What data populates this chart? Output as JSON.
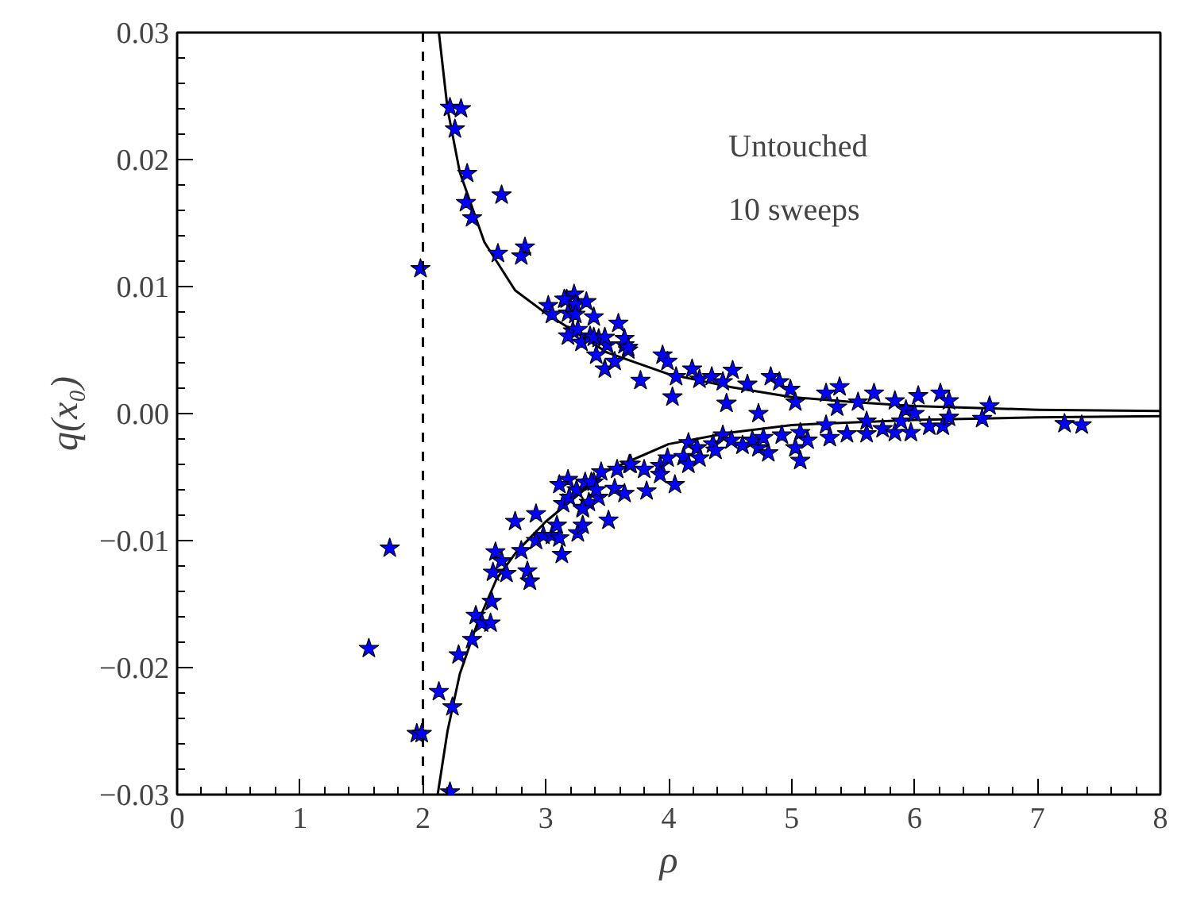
{
  "chart_data": {
    "type": "scatter",
    "xlabel": "ρ",
    "ylabel": "q(x₀)",
    "annotations": [
      "Untouched",
      "10 sweeps"
    ],
    "xlim": [
      0,
      8
    ],
    "ylim": [
      -0.03,
      0.03
    ],
    "xticks": [
      0,
      1,
      2,
      3,
      4,
      5,
      6,
      7,
      8
    ],
    "yticks": [
      {
        "value": -0.03,
        "label": "−0.03"
      },
      {
        "value": -0.02,
        "label": "−0.02"
      },
      {
        "value": -0.01,
        "label": "−0.01"
      },
      {
        "value": 0,
        "label": "0.00"
      },
      {
        "value": 0.01,
        "label": "0.01"
      },
      {
        "value": 0.02,
        "label": "0.02"
      },
      {
        "value": 0.03,
        "label": "0.03"
      }
    ],
    "grid": false,
    "ref_lines": [
      {
        "axis": "x",
        "value": 2,
        "color": "#000000",
        "line_style": "dashed"
      }
    ],
    "series": [
      {
        "type": "line",
        "color": "#000000",
        "marker": "none",
        "line_style": "solid",
        "x": [
          2.13,
          2.2,
          2.3,
          2.5,
          2.75,
          3.0,
          3.5,
          4,
          4.5,
          5,
          5.5,
          6,
          7,
          8
        ],
        "values": [
          0.03,
          0.024,
          0.019,
          0.0135,
          0.0097,
          0.0079,
          0.0048,
          0.0031,
          0.0021,
          0.0013,
          0.0009,
          0.0006,
          0.0003,
          0.0002
        ]
      },
      {
        "type": "line",
        "color": "#000000",
        "marker": "none",
        "line_style": "solid",
        "x": [
          2.12,
          2.2,
          2.3,
          2.44,
          2.6,
          2.76,
          3.0,
          3.5,
          4,
          4.5,
          5,
          6,
          7,
          8
        ],
        "values": [
          -0.03,
          -0.025,
          -0.0205,
          -0.0166,
          -0.013,
          -0.0109,
          -0.0085,
          -0.0045,
          -0.0024,
          -0.0015,
          -0.0009,
          -0.0005,
          -0.0003,
          -0.0002
        ]
      },
      {
        "color": "#0000ff",
        "marker": "star",
        "x": [
          2.22,
          2.31,
          2.26,
          2.36,
          2.35,
          2.64,
          2.4,
          2.61,
          2.83,
          2.8,
          1.98,
          3.02,
          3.05,
          3.17,
          3.23,
          3.24,
          3.33,
          3.18,
          3.24,
          3.39,
          3.59,
          3.22,
          3.18,
          3.26,
          3.29,
          3.36,
          3.43,
          3.5,
          3.41,
          3.48,
          3.56,
          3.64,
          3.67,
          3.15,
          3.39,
          3.48,
          3.64,
          3.67,
          3.95,
          3.99,
          3.77,
          4.03,
          4.06,
          4.19,
          4.25,
          4.35,
          4.44,
          4.47,
          4.52,
          4.64,
          4.73,
          4.83,
          4.9,
          4.99,
          5.03,
          5.28,
          5.39,
          5.37,
          5.54,
          5.67,
          5.84,
          5.93,
          6.03,
          6.21,
          6.28,
          6.61,
          7.22,
          7.36,
          1.73,
          1.56,
          1.95,
          1.99,
          2.22,
          2.13,
          2.24,
          2.29,
          2.4,
          2.43,
          2.48,
          2.55,
          2.56,
          2.57,
          2.59,
          2.64,
          2.68,
          2.75,
          2.8,
          2.85,
          2.87,
          2.92,
          2.92,
          2.98,
          3.05,
          3.11,
          3.13,
          3.09,
          3.14,
          3.18,
          3.11,
          3.19,
          3.26,
          3.3,
          3.3,
          3.35,
          3.25,
          3.32,
          3.39,
          3.43,
          3.45,
          3.51,
          3.56,
          3.58,
          3.64,
          3.68,
          3.3,
          3.37,
          3.41,
          3.82,
          3.69,
          3.8,
          3.93,
          3.93,
          3.99,
          4.05,
          4.12,
          4.16,
          4.16,
          4.23,
          4.25,
          4.36,
          4.38,
          4.44,
          4.51,
          4.6,
          4.68,
          4.73,
          4.81,
          4.77,
          4.92,
          5.03,
          5.07,
          5.07,
          5.13,
          5.28,
          5.31,
          5.45,
          5.61,
          5.61,
          5.74,
          5.84,
          5.97,
          5.89,
          6.0,
          6.12,
          6.23,
          6.28,
          6.55
        ],
        "values": [
          0.0241,
          0.024,
          0.0224,
          0.0189,
          0.0166,
          0.0172,
          0.0154,
          0.0126,
          0.0131,
          0.0124,
          0.0114,
          0.0085,
          0.0078,
          0.009,
          0.0094,
          0.0086,
          0.0088,
          0.0079,
          0.0078,
          0.0076,
          0.0071,
          0.0065,
          0.0061,
          0.0066,
          0.0056,
          0.0061,
          0.0059,
          0.0054,
          0.0046,
          0.0035,
          0.0041,
          0.0054,
          0.005,
          0.009,
          0.006,
          0.006,
          0.0059,
          0.0052,
          0.0046,
          0.0041,
          0.0026,
          0.0013,
          0.0029,
          0.0035,
          0.0027,
          0.0029,
          0.0025,
          0.0008,
          0.0034,
          0.0023,
          0.0,
          0.0029,
          0.0025,
          0.0019,
          0.0009,
          0.0016,
          0.0021,
          0.0005,
          0.0009,
          0.0016,
          0.001,
          0.0003,
          0.0014,
          0.0016,
          0.001,
          0.0006,
          -0.0008,
          -0.0009,
          -0.0106,
          -0.0185,
          -0.0252,
          -0.0252,
          -0.0298,
          -0.0219,
          -0.0231,
          -0.019,
          -0.0178,
          -0.0159,
          -0.0165,
          -0.0165,
          -0.0148,
          -0.0125,
          -0.0109,
          -0.0116,
          -0.0126,
          -0.0085,
          -0.0108,
          -0.0124,
          -0.0132,
          -0.0079,
          -0.01,
          -0.0096,
          -0.0096,
          -0.0098,
          -0.0111,
          -0.0088,
          -0.0071,
          -0.0052,
          -0.0056,
          -0.0066,
          -0.0094,
          -0.0088,
          -0.0074,
          -0.007,
          -0.006,
          -0.0054,
          -0.0054,
          -0.0066,
          -0.0046,
          -0.0084,
          -0.0059,
          -0.0044,
          -0.0063,
          -0.004,
          -0.0075,
          -0.0054,
          -0.006,
          -0.0061,
          -0.004,
          -0.0044,
          -0.0041,
          -0.0048,
          -0.0035,
          -0.0056,
          -0.0034,
          -0.004,
          -0.0023,
          -0.0027,
          -0.0035,
          -0.0024,
          -0.0029,
          -0.0017,
          -0.0021,
          -0.0025,
          -0.0021,
          -0.0027,
          -0.0031,
          -0.0019,
          -0.0017,
          -0.0027,
          -0.0037,
          -0.0015,
          -0.0021,
          -0.0009,
          -0.0019,
          -0.0016,
          -0.0006,
          -0.0016,
          -0.0012,
          -0.0015,
          -0.0015,
          -0.0006,
          0.0,
          -0.001,
          -0.001,
          -0.0003,
          -0.0004
        ]
      }
    ]
  }
}
